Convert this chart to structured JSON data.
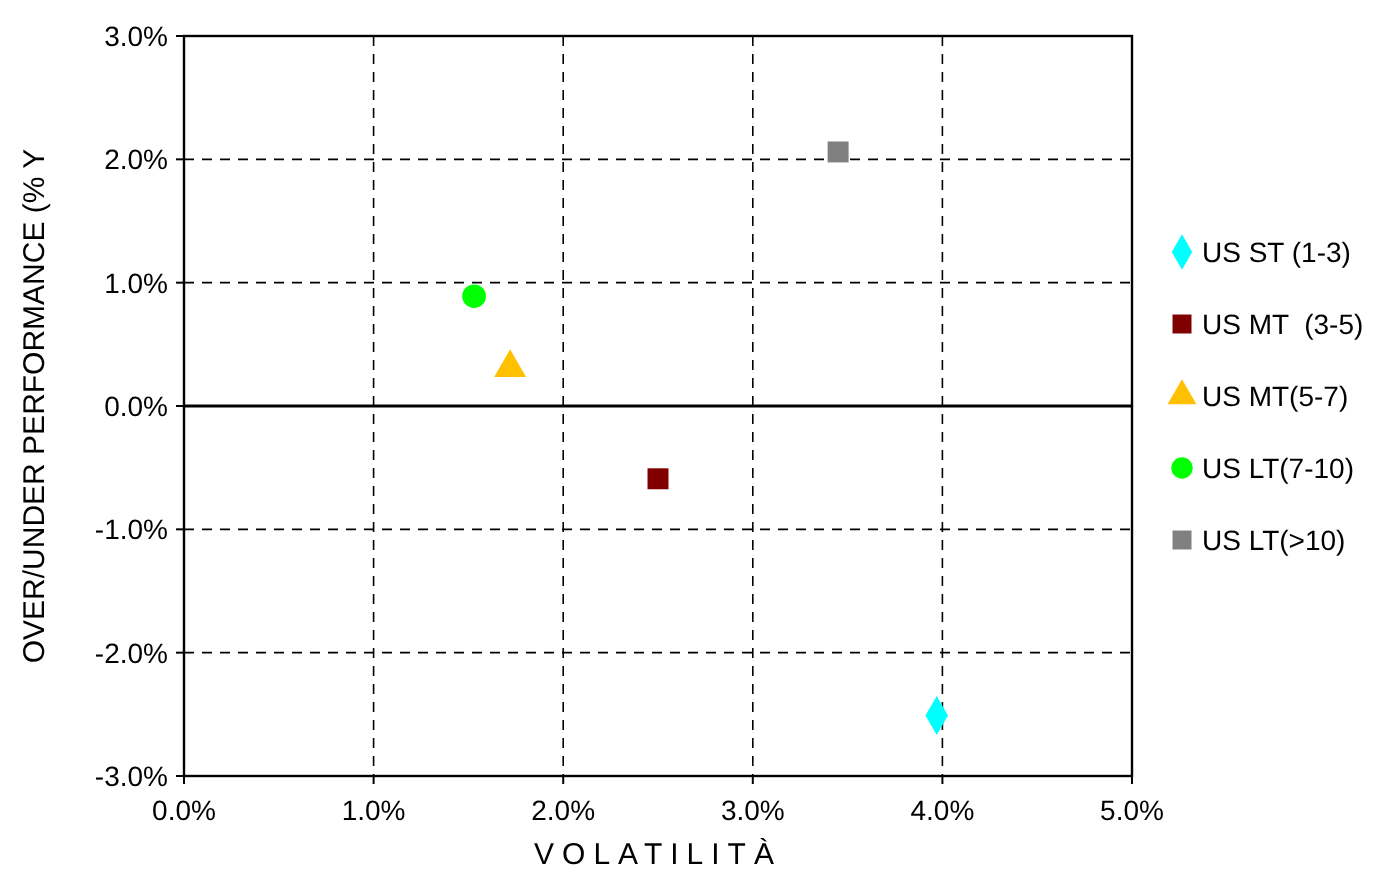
{
  "chart_data": {
    "type": "scatter",
    "xlabel": "VOLATILITÀ",
    "ylabel": "OVER/UNDER PERFORMANCE (% Y",
    "xlim": [
      0,
      5
    ],
    "xticks": [
      {
        "value": 0,
        "label": "0.0%"
      },
      {
        "value": 1,
        "label": "1.0%"
      },
      {
        "value": 2,
        "label": "2.0%"
      },
      {
        "value": 3,
        "label": "3.0%"
      },
      {
        "value": 4,
        "label": "4.0%"
      },
      {
        "value": 5,
        "label": "5.0%"
      }
    ],
    "ylim": [
      -3,
      3
    ],
    "yticks": [
      {
        "value": -3,
        "label": "-3.0%"
      },
      {
        "value": -2,
        "label": "-2.0%"
      },
      {
        "value": -1,
        "label": "-1.0%"
      },
      {
        "value": 0,
        "label": "0.0%"
      },
      {
        "value": 1,
        "label": "1.0%"
      },
      {
        "value": 2,
        "label": "2.0%"
      },
      {
        "value": 3,
        "label": "3.0%"
      }
    ],
    "grid": true,
    "legend": "right",
    "line_style": "dashed",
    "ref_lines": [
      {
        "axis": "y",
        "value": 0,
        "color": "#000000",
        "line_style": "solid"
      }
    ],
    "series": [
      {
        "name": "US ST (1-3)",
        "color": "#00ffff",
        "marker": "diamond",
        "x": [
          3.97
        ],
        "values": [
          -2.51
        ]
      },
      {
        "name": "US MT  (3-5)",
        "color": "#800000",
        "marker": "square",
        "x": [
          2.5
        ],
        "values": [
          -0.59
        ]
      },
      {
        "name": "US MT(5-7)",
        "color": "#ffc000",
        "marker": "triangle",
        "x": [
          1.72
        ],
        "values": [
          0.31
        ]
      },
      {
        "name": "US LT(7-10)",
        "color": "#00ff00",
        "marker": "circle",
        "x": [
          1.53
        ],
        "values": [
          0.89
        ]
      },
      {
        "name": "US LT(>10)",
        "color": "#808080",
        "marker": "square",
        "x": [
          3.45
        ],
        "values": [
          2.06
        ]
      }
    ]
  }
}
